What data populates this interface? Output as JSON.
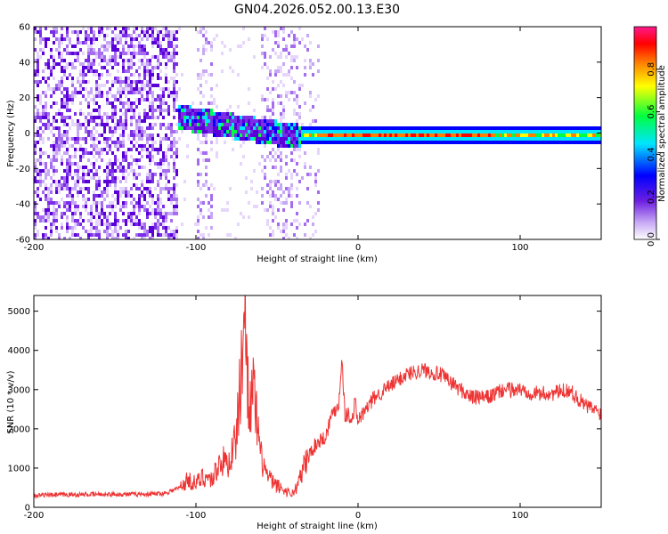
{
  "figure": {
    "title": "GN04.2026.052.00.13.E30"
  },
  "chart_data": [
    {
      "type": "heatmap",
      "title": "GN04.2026.052.00.13.E30",
      "xlabel": "Height of straight line (km)",
      "ylabel": "Frequency (Hz)",
      "xlim": [
        -200,
        150
      ],
      "ylim": [
        -60,
        60
      ],
      "xticks": [
        -200,
        -100,
        0,
        100
      ],
      "xtick_labels": [
        "-200",
        "-100",
        "0",
        "100"
      ],
      "yticks": [
        -60,
        -40,
        -20,
        0,
        20,
        40,
        60
      ],
      "ytick_labels": [
        "-60",
        "-40",
        "-20",
        "0",
        "20",
        "40",
        "60"
      ],
      "colorbar": {
        "label": "Normalized spectral amplitude",
        "range": [
          0,
          1
        ],
        "ticks": [
          0.0,
          0.2,
          0.4,
          0.6,
          0.8
        ],
        "tick_labels": [
          "0.0",
          "0.2",
          "0.4",
          "0.6",
          "0.8"
        ],
        "colormap": [
          "#ffffff",
          "#9b5cf0",
          "#5a00d8",
          "#0000ff",
          "#00e5ff",
          "#00ff40",
          "#ffff00",
          "#ff8000",
          "#ff0000",
          "#ff1a8c"
        ]
      },
      "regions": [
        {
          "x_range": [
            -200,
            -112
          ],
          "freq_range": [
            -60,
            60
          ],
          "amplitude": 0.05,
          "note_text": ""
        },
        {
          "x_range": [
            -112,
            -36
          ],
          "freq_range": [
            -5,
            15
          ],
          "amplitude": 0.3
        },
        {
          "x_range": [
            -36,
            150
          ],
          "freq_range": [
            -2,
            2
          ],
          "amplitude": 0.9
        }
      ]
    },
    {
      "type": "line",
      "xlabel": "Height of straight line (km)",
      "ylabel": "SNR (10 * v/v)",
      "xlim": [
        -200,
        150
      ],
      "ylim": [
        0,
        5400
      ],
      "xticks": [
        -200,
        -100,
        0,
        100
      ],
      "xtick_labels": [
        "-200",
        "-100",
        "0",
        "100"
      ],
      "yticks": [
        0,
        1000,
        2000,
        3000,
        4000,
        5000
      ],
      "ytick_labels": [
        "0",
        "1000",
        "2000",
        "3000",
        "4000",
        "5000"
      ],
      "color": "#ee3333",
      "x": [
        -200,
        -180,
        -160,
        -140,
        -120,
        -110,
        -105,
        -100,
        -95,
        -90,
        -85,
        -80,
        -75,
        -72,
        -70,
        -68,
        -66,
        -64,
        -62,
        -60,
        -56,
        -52,
        -48,
        -44,
        -40,
        -36,
        -32,
        -28,
        -24,
        -20,
        -16,
        -12,
        -10,
        -8,
        -6,
        -4,
        -2,
        0,
        5,
        10,
        20,
        30,
        40,
        50,
        60,
        70,
        80,
        90,
        100,
        110,
        120,
        130,
        140,
        150
      ],
      "values": [
        300,
        320,
        330,
        330,
        350,
        500,
        700,
        600,
        800,
        700,
        1200,
        1100,
        1800,
        3500,
        5300,
        3200,
        2600,
        3000,
        1900,
        1300,
        800,
        600,
        500,
        400,
        350,
        700,
        1200,
        1500,
        1700,
        1800,
        2400,
        2600,
        3800,
        2300,
        2400,
        2100,
        2700,
        2200,
        2500,
        2800,
        3100,
        3400,
        3500,
        3400,
        3100,
        2800,
        2800,
        3000,
        3000,
        2900,
        2900,
        3000,
        2600,
        2400
      ]
    }
  ]
}
